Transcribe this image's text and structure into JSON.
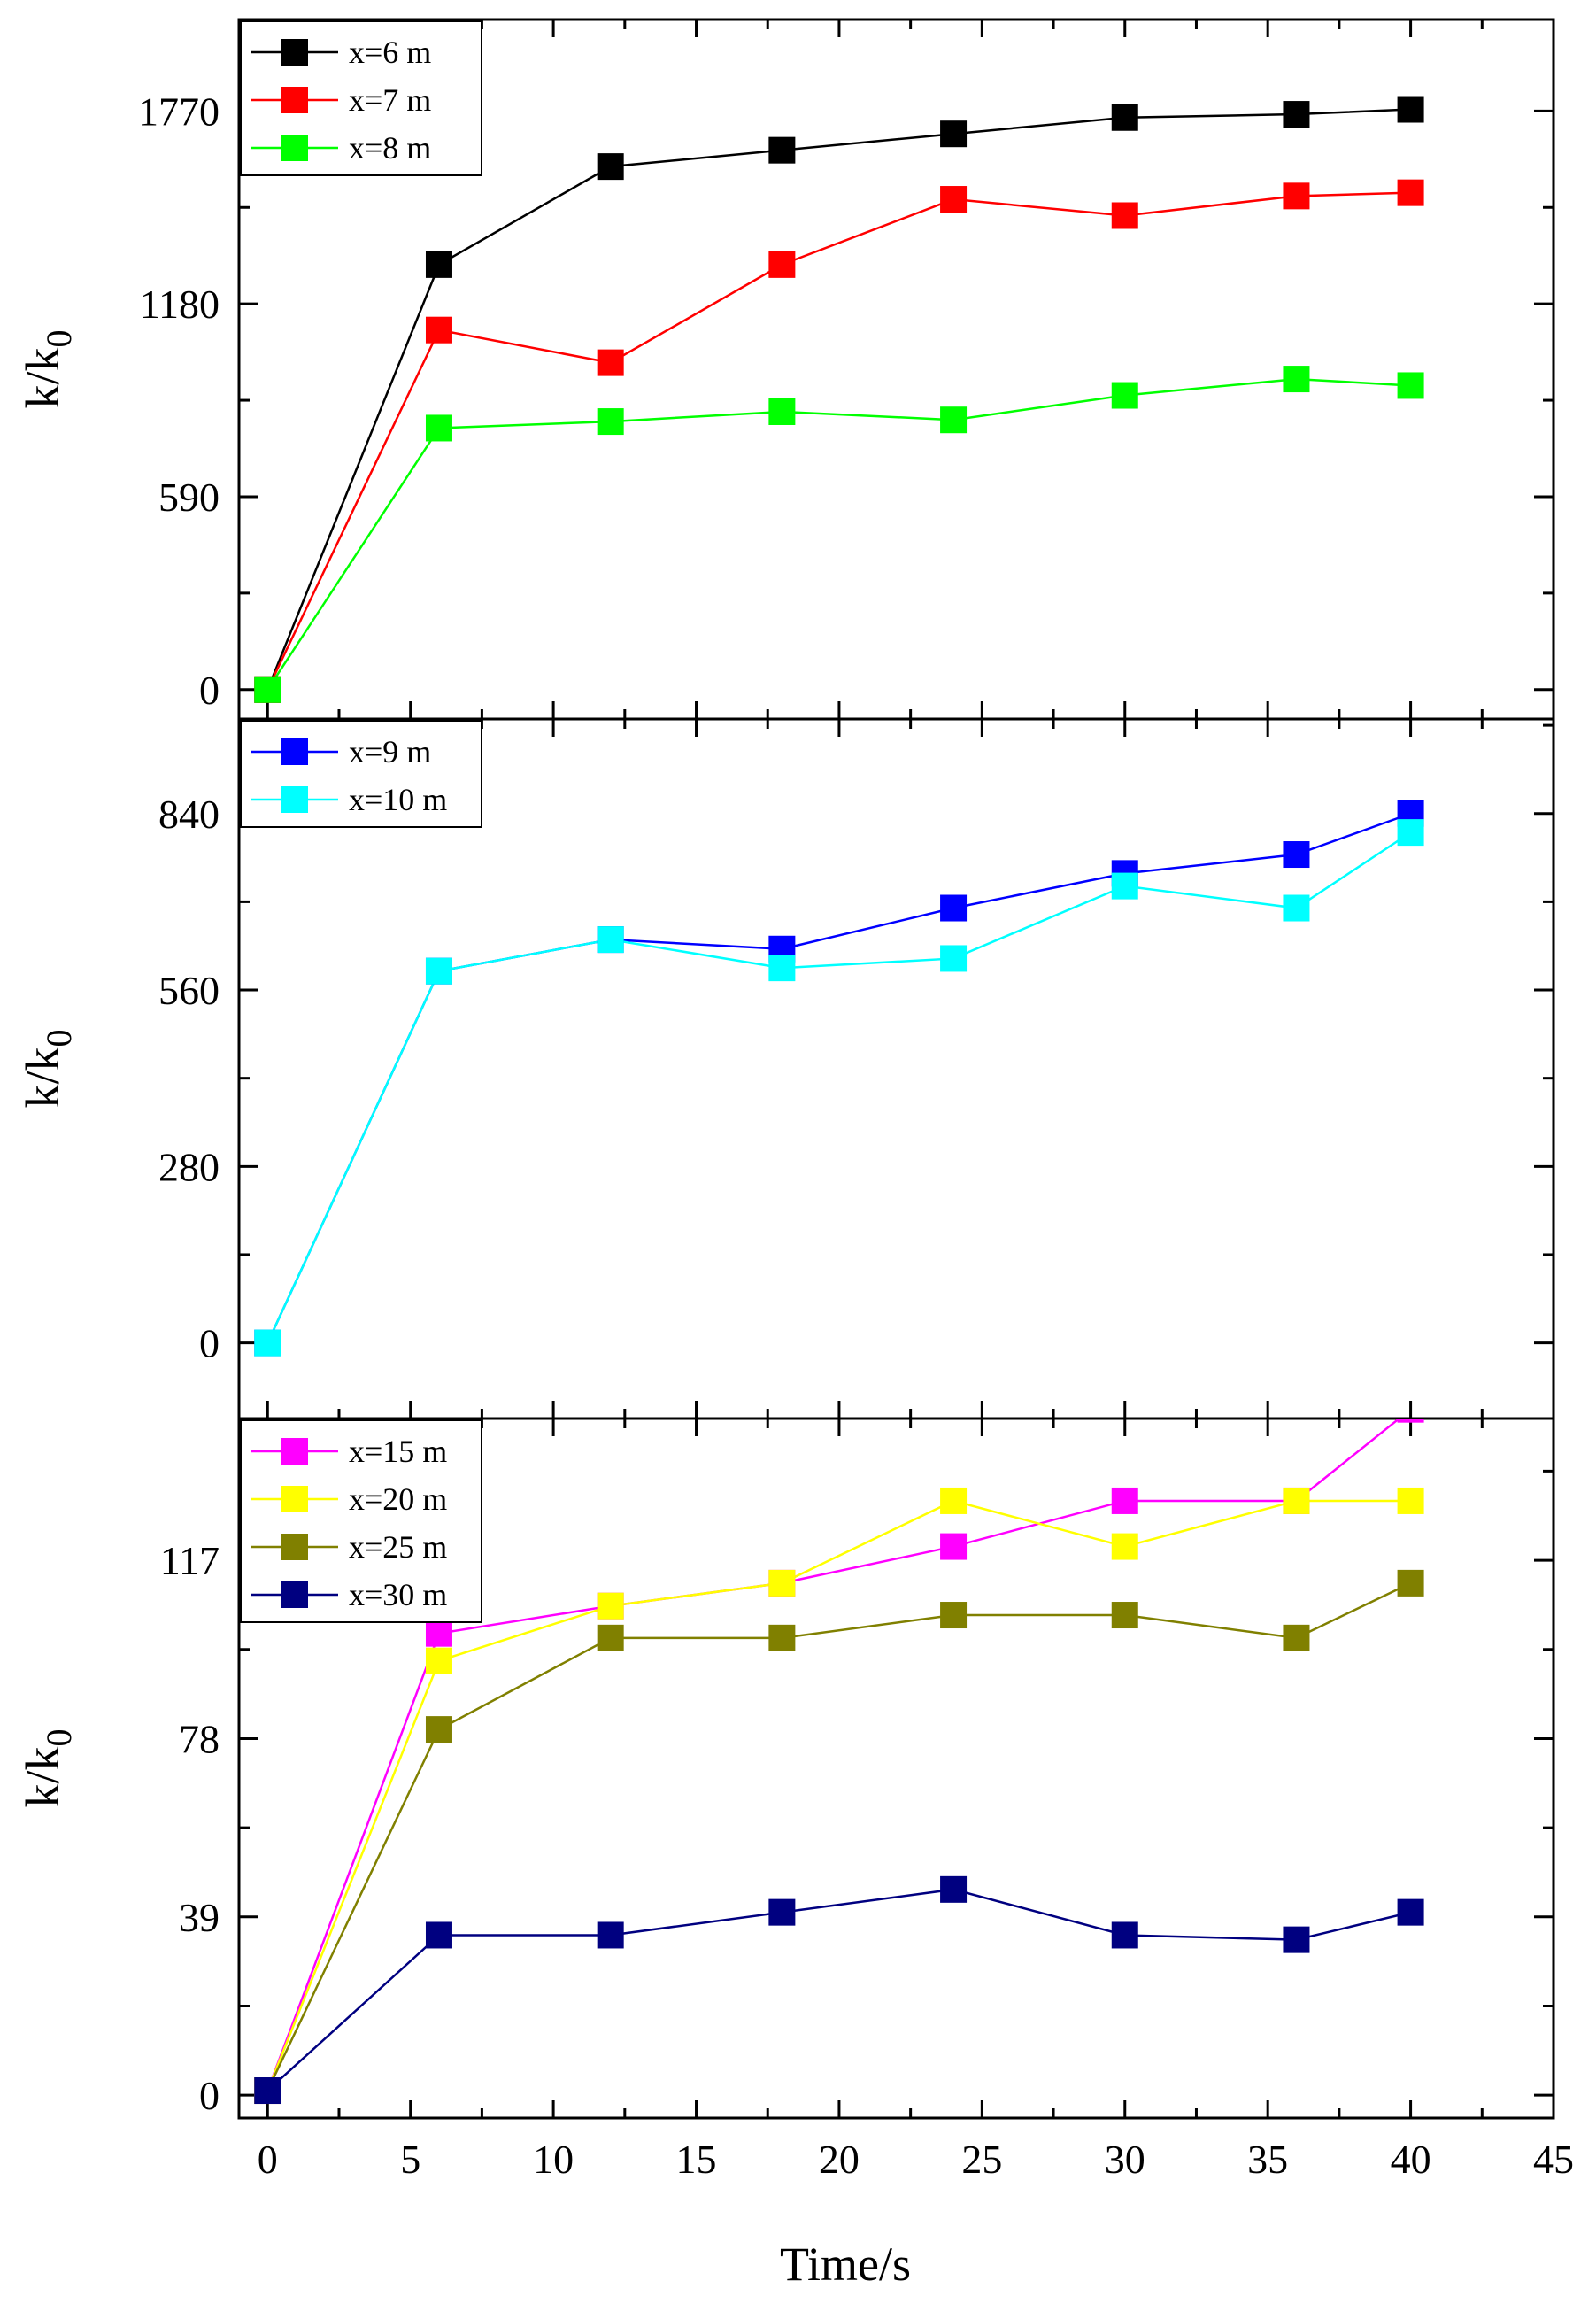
{
  "x_axis": {
    "label": "Time/s",
    "ticks": [
      0,
      5,
      10,
      15,
      20,
      25,
      30,
      35,
      40,
      45
    ],
    "xlim": [
      -1,
      45
    ]
  },
  "chart_data": [
    {
      "type": "line",
      "panel": "top",
      "ylabel": "k/k0",
      "ylabel_main": "k/k",
      "ylabel_sub": "0",
      "ylim": [
        -90,
        2050
      ],
      "yticks": [
        0,
        590,
        1180,
        1770
      ],
      "legend_position": "top-left",
      "series": [
        {
          "name": "x=6 m",
          "color": "#000000",
          "x": [
            0,
            6,
            12,
            18,
            24,
            30,
            36,
            40
          ],
          "y": [
            0,
            1300,
            1600,
            1650,
            1700,
            1750,
            1760,
            1775
          ]
        },
        {
          "name": "x=7 m",
          "color": "#ff0000",
          "x": [
            0,
            6,
            12,
            18,
            24,
            30,
            36,
            40
          ],
          "y": [
            0,
            1100,
            1000,
            1300,
            1500,
            1450,
            1510,
            1520
          ]
        },
        {
          "name": "x=8 m",
          "color": "#00ff00",
          "x": [
            0,
            6,
            12,
            18,
            24,
            30,
            36,
            40
          ],
          "y": [
            0,
            800,
            820,
            850,
            825,
            900,
            950,
            930
          ]
        }
      ]
    },
    {
      "type": "line",
      "panel": "middle",
      "ylabel": "k/k0",
      "ylabel_main": "k/k",
      "ylabel_sub": "0",
      "ylim": [
        -120,
        990
      ],
      "yticks": [
        0,
        280,
        560,
        840
      ],
      "legend_position": "top-left",
      "series": [
        {
          "name": "x=9 m",
          "color": "#0000ff",
          "x": [
            0,
            6,
            12,
            18,
            24,
            30,
            36,
            40
          ],
          "y": [
            0,
            590,
            640,
            625,
            690,
            745,
            775,
            840
          ]
        },
        {
          "name": "x=10 m",
          "color": "#00ffff",
          "x": [
            0,
            6,
            12,
            18,
            24,
            30,
            36,
            40
          ],
          "y": [
            0,
            590,
            640,
            595,
            610,
            725,
            690,
            810
          ]
        }
      ]
    },
    {
      "type": "line",
      "panel": "bottom",
      "ylabel": "k/k0",
      "ylabel_main": "k/k",
      "ylabel_sub": "0",
      "ylim": [
        -5,
        148
      ],
      "yticks": [
        0,
        39,
        78,
        117
      ],
      "legend_position": "top-left",
      "series": [
        {
          "name": "x=15 m",
          "color": "#ff00ff",
          "x": [
            0,
            6,
            12,
            18,
            24,
            30,
            36,
            40
          ],
          "y": [
            1,
            101,
            107,
            112,
            120,
            130,
            130,
            150
          ]
        },
        {
          "name": "x=20 m",
          "color": "#ffff00",
          "x": [
            0,
            6,
            12,
            18,
            24,
            30,
            36,
            40
          ],
          "y": [
            1,
            95,
            107,
            112,
            130,
            120,
            130,
            130
          ]
        },
        {
          "name": "x=25 m",
          "color": "#808000",
          "x": [
            0,
            6,
            12,
            18,
            24,
            30,
            36,
            40
          ],
          "y": [
            1,
            80,
            100,
            100,
            105,
            105,
            100,
            112
          ]
        },
        {
          "name": "x=30 m",
          "color": "#000080",
          "x": [
            0,
            6,
            12,
            18,
            24,
            30,
            36,
            40
          ],
          "y": [
            1,
            35,
            35,
            40,
            45,
            35,
            34,
            40
          ]
        }
      ]
    }
  ]
}
